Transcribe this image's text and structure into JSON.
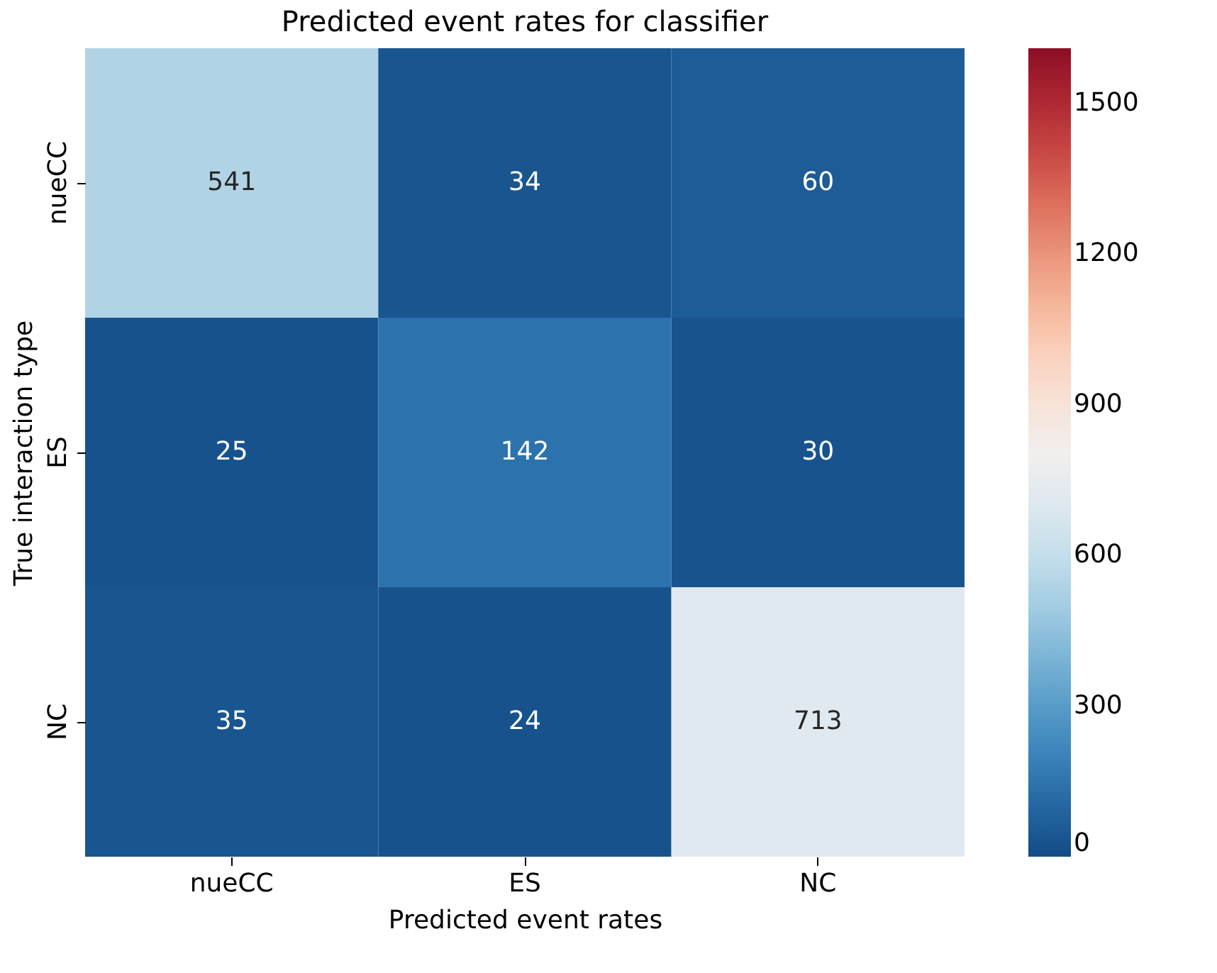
{
  "chart_data": {
    "type": "heatmap",
    "title": "Predicted event rates for classifier",
    "xlabel": "Predicted event rates",
    "ylabel": "True interaction type",
    "categories": [
      "nueCC",
      "ES",
      "NC"
    ],
    "y_categories": [
      "nueCC",
      "ES",
      "NC"
    ],
    "cells": [
      [
        541,
        34,
        60
      ],
      [
        25,
        142,
        30
      ],
      [
        35,
        24,
        713
      ]
    ],
    "data_labels": true,
    "clim": [
      0,
      1610
    ],
    "cticks": [
      0,
      300,
      600,
      900,
      1200,
      1500
    ]
  }
}
